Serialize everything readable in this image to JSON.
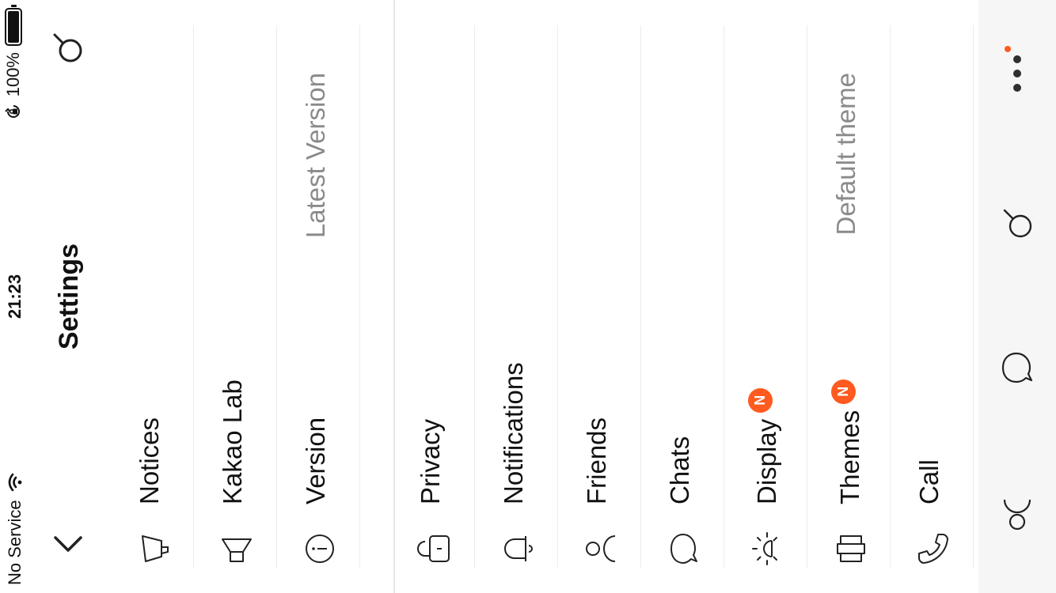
{
  "status_bar": {
    "carrier": "No Service",
    "time": "21:23",
    "battery": "100%"
  },
  "header": {
    "title": "Settings"
  },
  "settings": {
    "notices": {
      "label": "Notices"
    },
    "kakao_lab": {
      "label": "Kakao Lab"
    },
    "version": {
      "label": "Version",
      "value": "Latest Version"
    },
    "privacy": {
      "label": "Privacy"
    },
    "notifications": {
      "label": "Notifications"
    },
    "friends": {
      "label": "Friends"
    },
    "chats": {
      "label": "Chats"
    },
    "display": {
      "label": "Display",
      "badge": "N"
    },
    "themes": {
      "label": "Themes",
      "badge": "N",
      "value": "Default theme"
    },
    "call": {
      "label": "Call"
    }
  },
  "icons": {
    "back": "chevron-left-icon",
    "search": "search-icon",
    "notices": "megaphone-icon",
    "kakao_lab": "flask-icon",
    "version": "info-icon",
    "privacy": "lock-icon",
    "notifications": "bell-icon",
    "friends": "person-icon",
    "chats": "chat-bubble-icon",
    "display": "sun-icon",
    "themes": "theme-icon",
    "call": "phone-icon",
    "tab_friends": "person-icon",
    "tab_chats": "chat-bubble-icon",
    "tab_search": "search-icon",
    "tab_more": "more-dots-icon"
  },
  "colors": {
    "accent": "#ff5a1f",
    "text": "#111111",
    "secondary_text": "#8a8a8a",
    "tab_bar_bg": "#f6f6f6"
  }
}
